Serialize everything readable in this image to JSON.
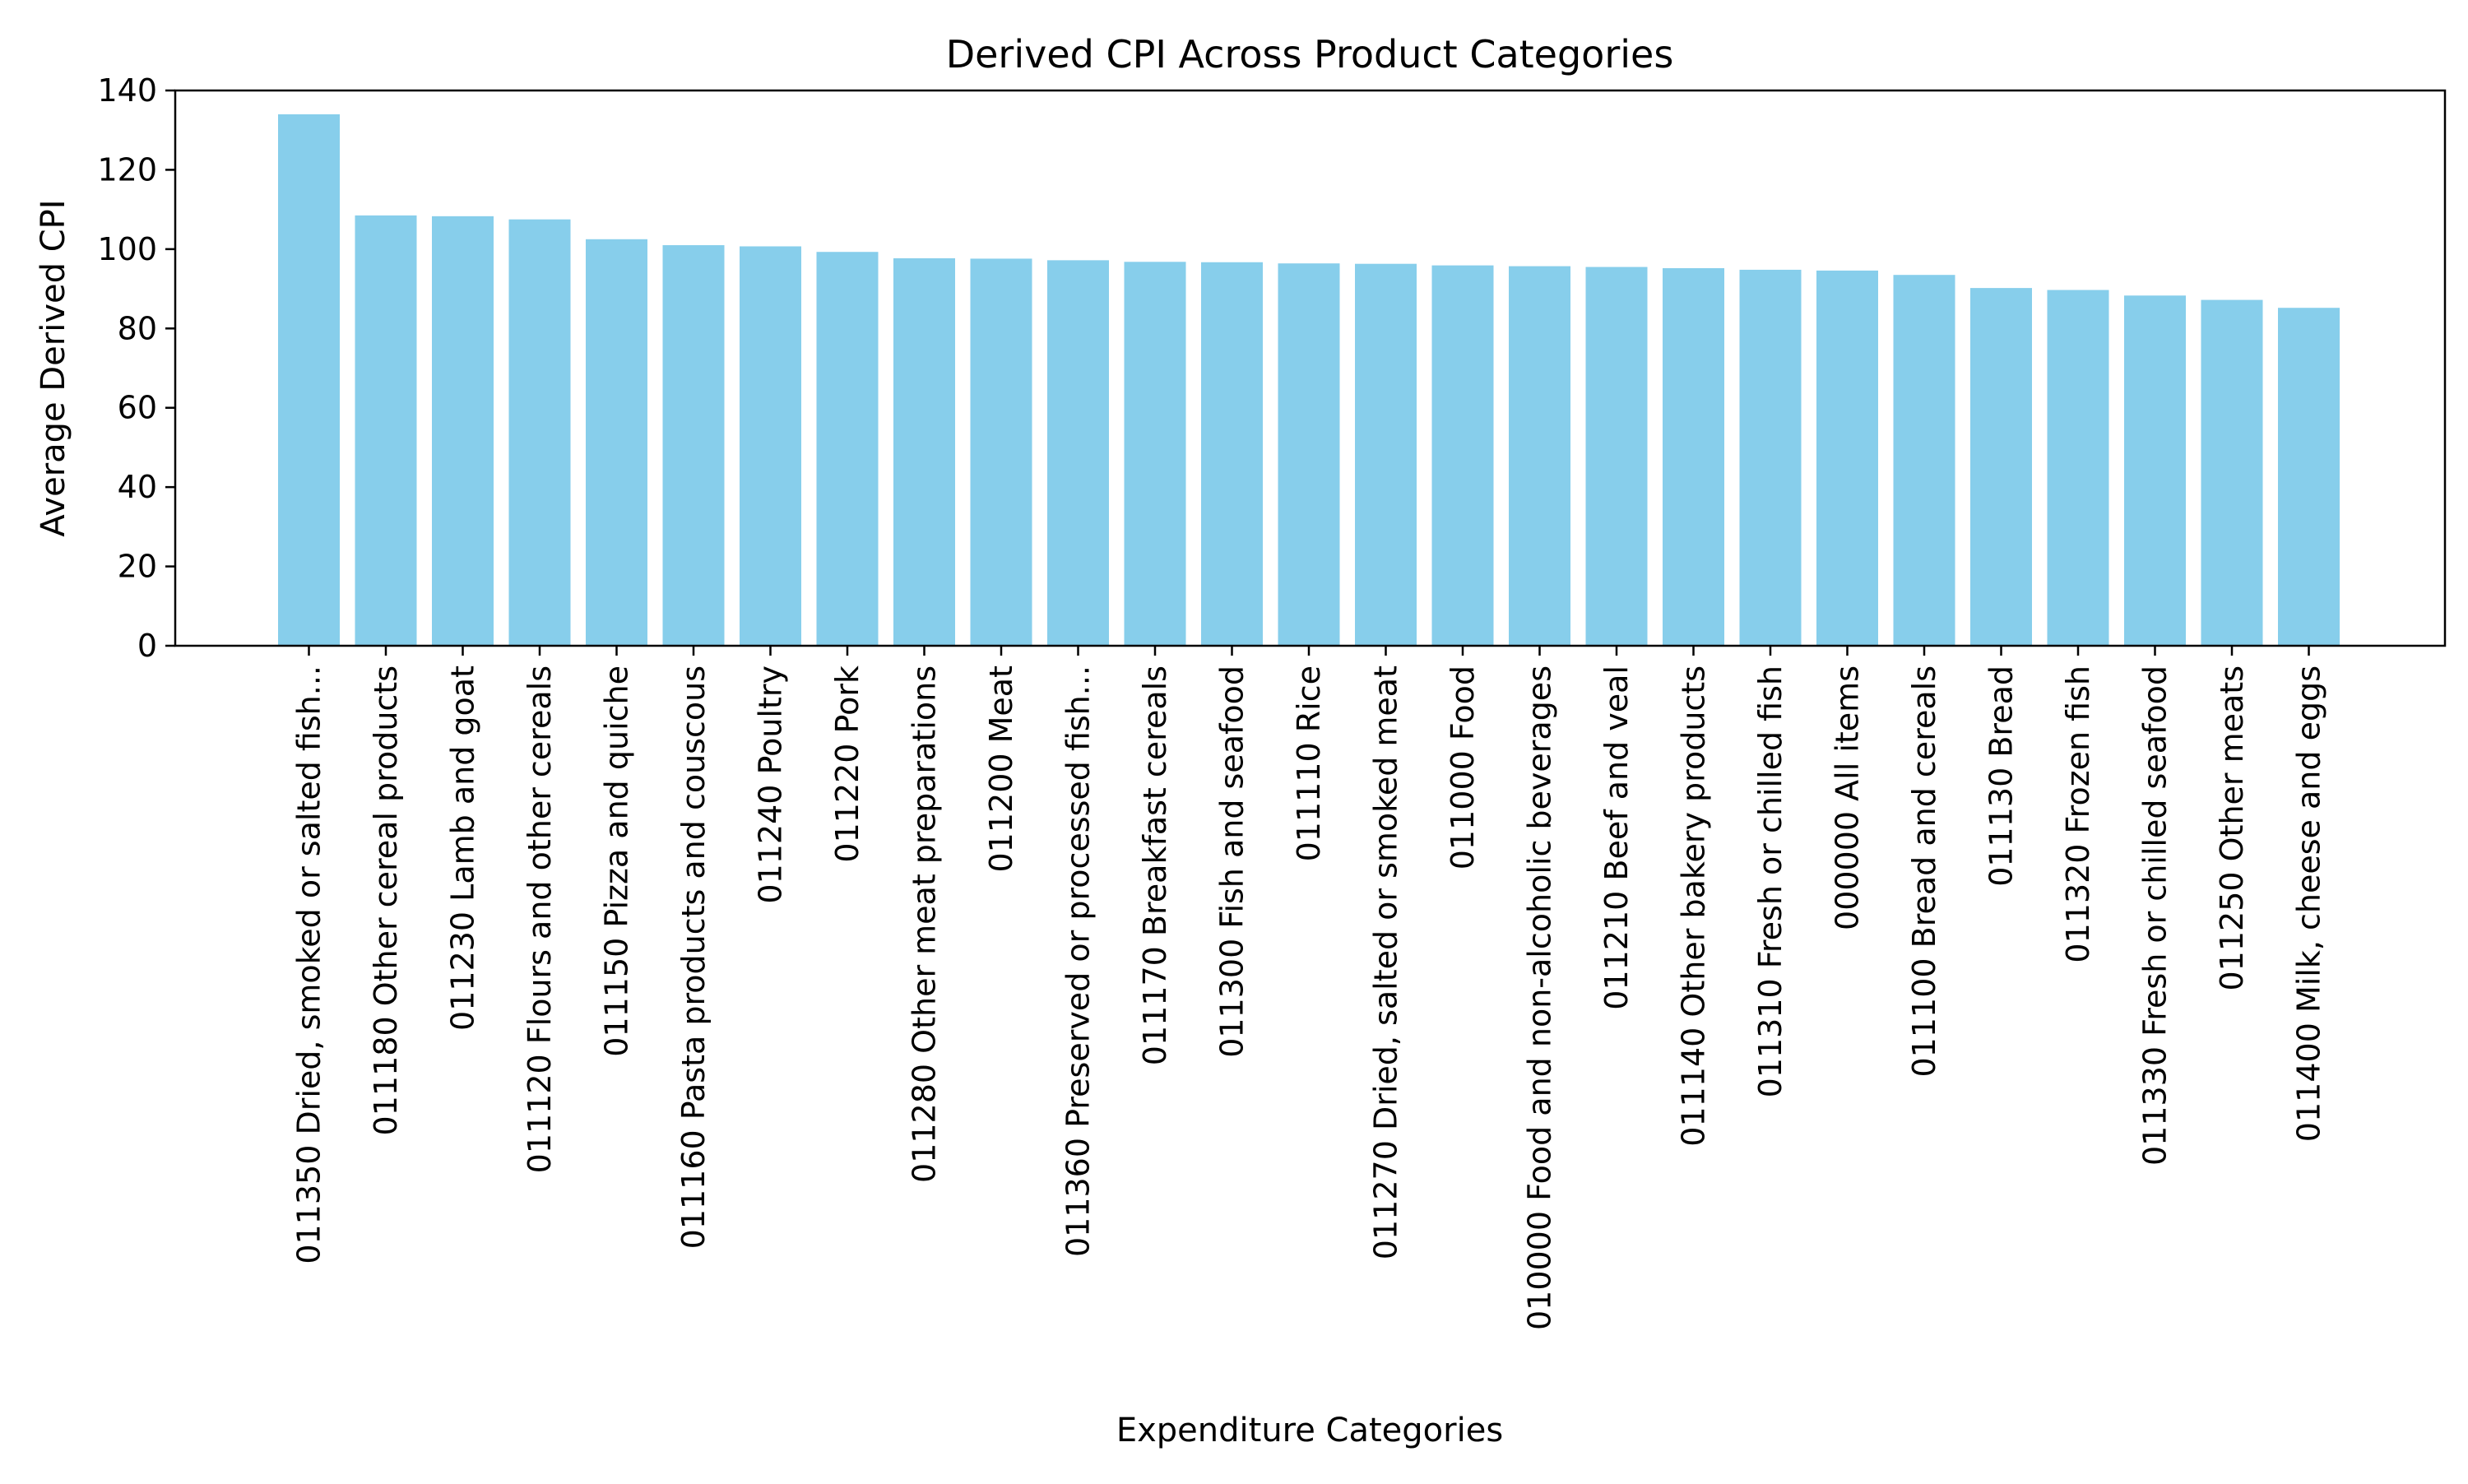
{
  "chart_data": {
    "type": "bar",
    "title": "Derived CPI Across Product Categories",
    "xlabel": "Expenditure Categories",
    "ylabel": "Average Derived CPI",
    "ylim": [
      0,
      140
    ],
    "yticks": [
      0,
      20,
      40,
      60,
      80,
      100,
      120,
      140
    ],
    "grid": false,
    "bar_color": "#87CEEB",
    "categories": [
      "011350 Dried, smoked or salted fish...",
      "011180 Other cereal products",
      "011230 Lamb and goat",
      "011120 Flours and other cereals",
      "011150 Pizza and quiche",
      "011160 Pasta products and couscous",
      "011240 Poultry",
      "011220 Pork",
      "011280 Other meat preparations",
      "011200 Meat",
      "011360 Preserved or processed fish...",
      "011170 Breakfast cereals",
      "011300 Fish and seafood",
      "011110 Rice",
      "011270 Dried, salted or smoked meat",
      "011000 Food",
      "010000 Food and non-alcoholic beverages",
      "011210 Beef and veal",
      "011140 Other bakery products",
      "011310 Fresh or chilled fish",
      "000000 All items",
      "011100 Bread and cereals",
      "011130 Bread",
      "011320 Frozen fish",
      "011330 Fresh or chilled seafood",
      "011250 Other meats",
      "011400 Milk, cheese and eggs"
    ],
    "values": [
      134,
      108.5,
      108.3,
      107.5,
      102.5,
      101,
      100.7,
      99.3,
      97.7,
      97.6,
      97.2,
      96.8,
      96.7,
      96.4,
      96.3,
      95.9,
      95.7,
      95.5,
      95.2,
      94.8,
      94.6,
      93.5,
      90.2,
      89.7,
      88.3,
      87.2,
      85.2
    ]
  }
}
